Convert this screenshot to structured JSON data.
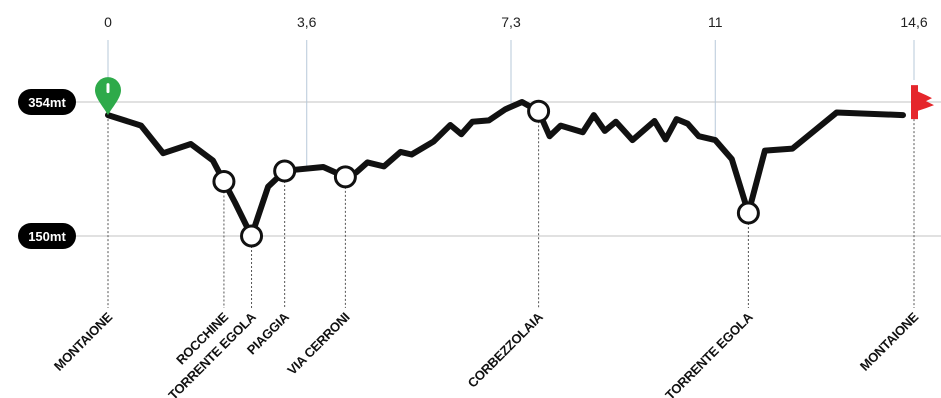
{
  "chart_data": {
    "type": "line",
    "title": "",
    "xlabel": "",
    "ylabel": "",
    "x_ticks": [
      {
        "km": 0,
        "label": "0"
      },
      {
        "km": 3.6,
        "label": "3,6"
      },
      {
        "km": 7.3,
        "label": "7,3"
      },
      {
        "km": 11,
        "label": "11"
      },
      {
        "km": 14.6,
        "label": "14,6"
      }
    ],
    "y_ticks": [
      {
        "m": 354,
        "label": "354mt"
      },
      {
        "m": 150,
        "label": "150mt"
      }
    ],
    "xlim": [
      0,
      14.6
    ],
    "ylim": [
      150,
      354
    ],
    "series": [
      {
        "x": [
          0,
          0.6,
          1.0,
          1.5,
          1.9,
          2.3,
          2.6,
          2.9,
          3.2,
          3.4,
          3.9,
          4.3,
          4.5,
          4.7,
          5.0,
          5.3,
          5.5,
          5.9,
          6.2,
          6.4,
          6.6,
          6.9,
          7.2,
          7.5,
          7.8,
          8.0,
          8.2,
          8.6,
          8.8,
          9.0,
          9.2,
          9.5,
          9.9,
          10.1,
          10.3,
          10.5,
          10.7,
          11.0,
          11.3,
          11.6,
          11.9,
          12.4,
          13.2,
          14.4
        ],
        "y": [
          334,
          318,
          276,
          290,
          265,
          201,
          150,
          225,
          249,
          251,
          255,
          240,
          247,
          262,
          256,
          278,
          274,
          294,
          319,
          305,
          324,
          326,
          343,
          354,
          340,
          302,
          318,
          308,
          334,
          310,
          324,
          296,
          325,
          297,
          328,
          321,
          302,
          296,
          267,
          185,
          280,
          283,
          338,
          334
        ]
      }
    ],
    "waypoints": [
      {
        "km": 0,
        "name": "MONTAIONE",
        "marker": "start"
      },
      {
        "km": 2.1,
        "name": "ROCCHINE",
        "marker": "circle"
      },
      {
        "km": 2.6,
        "name": "TORRENTE EGOLA",
        "marker": "circle"
      },
      {
        "km": 3.2,
        "name": "PIAGGIA",
        "marker": "circle"
      },
      {
        "km": 4.3,
        "name": "VIA CERRONI",
        "marker": "circle"
      },
      {
        "km": 7.8,
        "name": "CORBEZZOLAIA",
        "marker": "circle"
      },
      {
        "km": 11.6,
        "name": "TORRENTE EGOLA",
        "marker": "circle"
      },
      {
        "km": 14.6,
        "name": "MONTAIONE",
        "marker": "finish"
      }
    ],
    "grid": true,
    "colors": {
      "line": "#111111",
      "start": "#2eaa4a",
      "finish": "#e5262b",
      "badge": "#000000",
      "grid": "#cfcfcf",
      "tick_line": "#b7c8d8"
    }
  }
}
